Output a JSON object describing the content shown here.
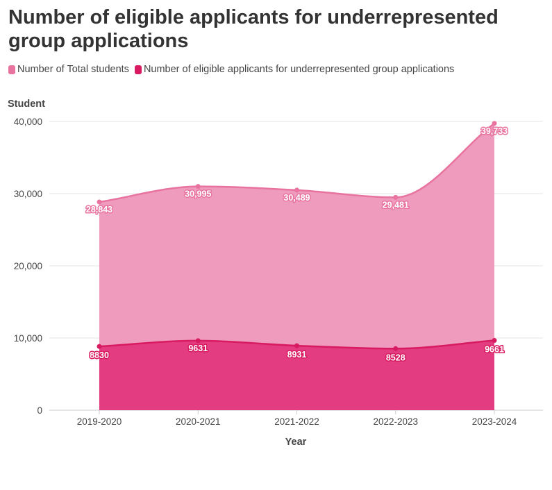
{
  "chart_data": {
    "type": "area",
    "title": "Number of eligible applicants for underrepresented group applications",
    "xlabel": "Year",
    "ylabel": "Student",
    "ylim": [
      0,
      40000
    ],
    "yticks": [
      0,
      10000,
      20000,
      30000,
      40000
    ],
    "ytick_labels": [
      "0",
      "10,000",
      "20,000",
      "30,000",
      "40,000"
    ],
    "categories": [
      "2019-2020",
      "2020-2021",
      "2021-2022",
      "2022-2023",
      "2023-2024"
    ],
    "series": [
      {
        "name": "Number of Total students",
        "values": [
          28843,
          30995,
          30489,
          29481,
          39733
        ],
        "labels": [
          "28,843",
          "30,995",
          "30,489",
          "29,481",
          "39,733"
        ],
        "line_color": "#e8739f",
        "fill_color": "#ee9bbd"
      },
      {
        "name": "Number of eligible applicants for underrepresented group applications",
        "values": [
          8830,
          9631,
          8931,
          8528,
          9661
        ],
        "labels": [
          "8830",
          "9631",
          "8931",
          "8528",
          "9661"
        ],
        "line_color": "#d81b60",
        "fill_color": "#e33c80"
      }
    ],
    "legend_position": "top-left",
    "grid": true
  }
}
